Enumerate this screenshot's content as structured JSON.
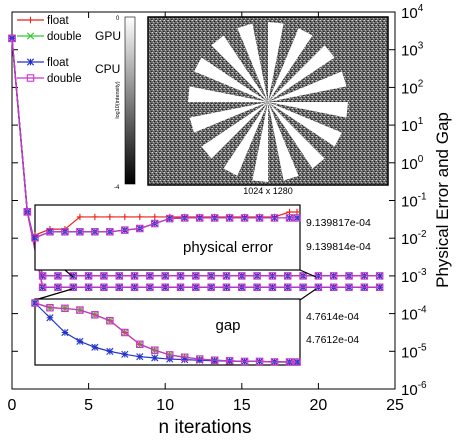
{
  "chart_data": {
    "type": "line",
    "title": "",
    "xlabel": "n iterations",
    "ylabel": "Physical Error and Gap",
    "xlim": [
      0,
      25
    ],
    "ylim": [
      1e-06,
      10000.0
    ],
    "yscale": "log",
    "x_ticks": [
      "0",
      "5",
      "10",
      "15",
      "20",
      "25"
    ],
    "x_tick_values": [
      0,
      5,
      10,
      15,
      20,
      25
    ],
    "y_tick_values": [
      1e-06,
      1e-05,
      0.0001,
      0.001,
      0.01,
      0.1,
      1.0,
      10.0,
      100.0,
      1000.0,
      10000.0
    ],
    "y_ticks": [
      {
        "base": "10",
        "exp": "-6"
      },
      {
        "base": "10",
        "exp": "-5"
      },
      {
        "base": "10",
        "exp": "-4"
      },
      {
        "base": "10",
        "exp": "-3"
      },
      {
        "base": "10",
        "exp": "-2"
      },
      {
        "base": "10",
        "exp": "-1"
      },
      {
        "base": "10",
        "exp": "0"
      },
      {
        "base": "10",
        "exp": "1"
      },
      {
        "base": "10",
        "exp": "2"
      },
      {
        "base": "10",
        "exp": "3"
      },
      {
        "base": "10",
        "exp": "4"
      }
    ],
    "legend": {
      "placement": "top-left",
      "group_labels": [
        "GPU",
        "CPU"
      ],
      "entries": [
        {
          "name": "float",
          "color": "#e8221a",
          "marker": "plus"
        },
        {
          "name": "double",
          "color": "#33cc33",
          "marker": "cross"
        },
        {
          "name": "float",
          "color": "#2233cc",
          "marker": "star"
        },
        {
          "name": "double",
          "color": "#cc33cc",
          "marker": "square"
        }
      ]
    },
    "series": [
      {
        "label_group": "physical_error",
        "x": [
          0,
          1,
          2,
          3,
          4,
          5,
          6,
          7,
          8,
          9,
          10,
          11,
          12,
          13,
          14,
          15,
          16,
          17,
          18,
          19,
          20,
          21,
          22,
          23,
          24
        ],
        "values": [
          2000,
          0.05,
          0.001,
          0.001,
          0.001,
          0.001,
          0.001,
          0.001,
          0.001,
          0.001,
          0.001,
          0.001,
          0.001,
          0.001,
          0.001,
          0.001,
          0.001,
          0.001,
          0.001,
          0.001,
          0.001,
          0.001,
          0.001,
          0.001,
          0.001
        ]
      },
      {
        "label_group": "gap",
        "x": [
          0,
          1,
          2,
          3,
          4,
          5,
          6,
          7,
          8,
          9,
          10,
          11,
          12,
          13,
          14,
          15,
          16,
          17,
          18,
          19,
          20,
          21,
          22,
          23,
          24
        ],
        "values": [
          2000,
          0.05,
          0.0005,
          0.0005,
          0.0005,
          0.0005,
          0.0005,
          0.0005,
          0.0005,
          0.0005,
          0.0005,
          0.0005,
          0.0005,
          0.0005,
          0.0005,
          0.0005,
          0.0005,
          0.0005,
          0.0005,
          0.0005,
          0.0005,
          0.0005,
          0.0005,
          0.0005,
          0.0005
        ]
      }
    ],
    "inset_physical_error": {
      "label": "physical error",
      "y_ticks": [
        "9.139817e-04",
        "9.139814e-04"
      ],
      "series": [
        {
          "name": "GPU float",
          "color": "#e8221a",
          "x": [
            1,
            2,
            3,
            4,
            5,
            6,
            7,
            8,
            9,
            10,
            11,
            12,
            13,
            14,
            15,
            16,
            17,
            18,
            18.5
          ],
          "values": [
            0.3,
            0.48,
            0.48,
            0.85,
            0.85,
            0.85,
            0.85,
            0.85,
            0.85,
            0.85,
            0.85,
            0.85,
            0.85,
            0.85,
            0.85,
            0.85,
            0.85,
            1.0,
            1.0
          ]
        },
        {
          "name": "GPU double",
          "color": "#33cc33",
          "x": [
            1,
            2,
            3,
            4,
            5,
            6,
            7,
            8,
            9,
            10,
            11,
            12,
            13,
            14,
            15,
            16,
            17,
            18,
            18.5
          ],
          "values": [
            0.22,
            0.4,
            0.4,
            0.4,
            0.4,
            0.4,
            0.45,
            0.5,
            0.65,
            0.8,
            0.82,
            0.82,
            0.82,
            0.82,
            0.82,
            0.82,
            0.82,
            0.82,
            0.82
          ]
        },
        {
          "name": "CPU float",
          "color": "#2233cc",
          "x": [
            1,
            2,
            3,
            4,
            5,
            6,
            7,
            8,
            9,
            10,
            11,
            12,
            13,
            14,
            15,
            16,
            17,
            18,
            18.5
          ],
          "values": [
            0.22,
            0.4,
            0.4,
            0.4,
            0.4,
            0.4,
            0.45,
            0.5,
            0.65,
            0.8,
            0.82,
            0.82,
            0.82,
            0.82,
            0.82,
            0.82,
            0.82,
            0.82,
            0.82
          ]
        },
        {
          "name": "CPU double",
          "color": "#cc33cc",
          "x": [
            1,
            2,
            3,
            4,
            5,
            6,
            7,
            8,
            9,
            10,
            11,
            12,
            13,
            14,
            15,
            16,
            17,
            18,
            18.5
          ],
          "values": [
            0.22,
            0.4,
            0.4,
            0.4,
            0.4,
            0.4,
            0.45,
            0.5,
            0.65,
            0.8,
            0.82,
            0.82,
            0.82,
            0.82,
            0.82,
            0.82,
            0.82,
            0.82,
            0.82
          ]
        }
      ]
    },
    "inset_gap": {
      "label": "gap",
      "y_ticks": [
        "4.7614e-04",
        "4.7612e-04"
      ],
      "series": [
        {
          "name": "GPU float",
          "color": "#e8221a",
          "x": [
            1,
            2,
            3,
            4,
            5,
            6,
            7,
            8,
            9,
            10,
            11,
            12,
            13,
            14,
            15,
            16,
            17,
            18,
            18.5
          ],
          "values": [
            1.0,
            0.92,
            0.91,
            0.88,
            0.8,
            0.7,
            0.5,
            0.3,
            0.2,
            0.12,
            0.08,
            0.05,
            0.03,
            0.02,
            0.01,
            0.01,
            0.0,
            0.0,
            0.0
          ]
        },
        {
          "name": "GPU double",
          "color": "#33cc33",
          "x": [
            1,
            2,
            3,
            4,
            5,
            6,
            7,
            8,
            9,
            10,
            11,
            12,
            13,
            14,
            15,
            16,
            17,
            18,
            18.5
          ],
          "values": [
            1.0,
            0.92,
            0.91,
            0.88,
            0.8,
            0.7,
            0.5,
            0.3,
            0.2,
            0.12,
            0.08,
            0.05,
            0.03,
            0.02,
            0.01,
            0.01,
            0.0,
            0.0,
            0.0
          ]
        },
        {
          "name": "CPU float",
          "color": "#2233cc",
          "x": [
            1,
            2,
            3,
            4,
            5,
            6,
            7,
            8,
            9,
            10,
            11,
            12,
            13,
            14,
            15,
            16,
            17,
            18,
            18.5
          ],
          "values": [
            1.0,
            0.75,
            0.5,
            0.35,
            0.25,
            0.18,
            0.13,
            0.09,
            0.07,
            0.05,
            0.04,
            0.03,
            0.02,
            0.015,
            0.01,
            0.01,
            0.005,
            0.0,
            0.0
          ]
        },
        {
          "name": "CPU double",
          "color": "#cc33cc",
          "x": [
            1,
            2,
            3,
            4,
            5,
            6,
            7,
            8,
            9,
            10,
            11,
            12,
            13,
            14,
            15,
            16,
            17,
            18,
            18.5
          ],
          "values": [
            1.0,
            0.92,
            0.91,
            0.88,
            0.8,
            0.7,
            0.5,
            0.3,
            0.2,
            0.12,
            0.08,
            0.05,
            0.03,
            0.02,
            0.01,
            0.01,
            0.0,
            0.0,
            0.0
          ]
        }
      ]
    },
    "image_inset": {
      "caption": "1024 x 1280",
      "colorbar_label": "log10(intensity)",
      "colorbar_ticks": [
        "0",
        "-4"
      ],
      "spokes": 16
    }
  }
}
